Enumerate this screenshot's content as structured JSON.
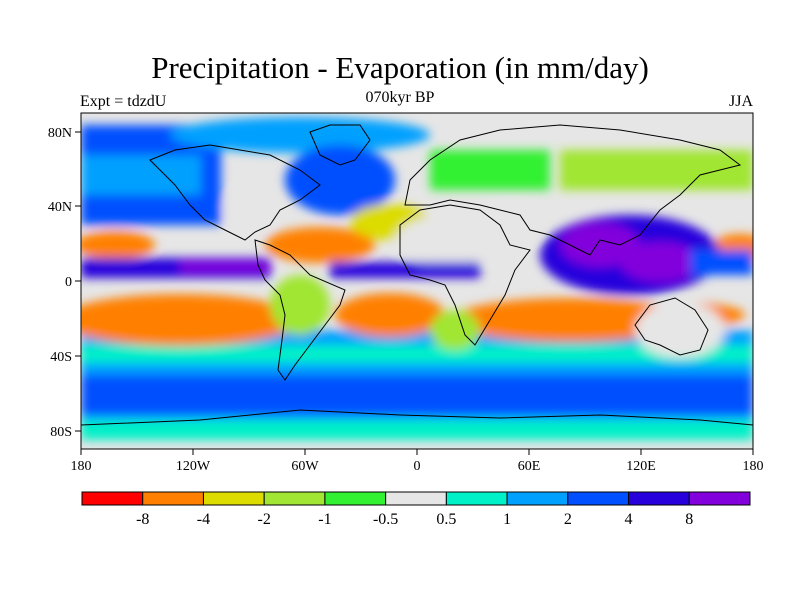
{
  "header": {
    "title": "Precipitation - Evaporation (in mm/day)",
    "subtitle": "070kyr BP",
    "left_label": "Expt = tdzdU",
    "right_label": "JJA"
  },
  "map": {
    "lat_ticks": [
      "80N",
      "40N",
      "0",
      "40S",
      "80S"
    ],
    "lon_ticks": [
      "180",
      "120W",
      "60W",
      "0",
      "60E",
      "120E",
      "180"
    ]
  },
  "legend": {
    "colors": [
      "#ff0000",
      "#ff8000",
      "#dcdc00",
      "#a0e632",
      "#32f032",
      "#e6e6e6",
      "#00f0c8",
      "#00a0ff",
      "#0050ff",
      "#2800dc",
      "#8200dc"
    ],
    "labels": [
      "-8",
      "-4",
      "-2",
      "-1",
      "-0.5",
      "0.5",
      "1",
      "2",
      "4",
      "8"
    ]
  }
}
